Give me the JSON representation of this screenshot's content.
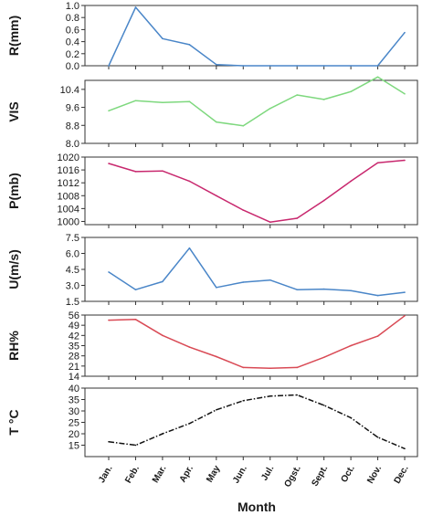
{
  "chart_data": {
    "type": "line",
    "xlabel": "Month",
    "categories": [
      "Jan.",
      "Feb.",
      "Mar.",
      "Apr.",
      "May",
      "Jun.",
      "Jul.",
      "Ogst.",
      "Sept.",
      "Oct.",
      "Nov.",
      "Dec."
    ],
    "panels": [
      {
        "ylabel": "R(mm)",
        "ylim": [
          0.0,
          1.0
        ],
        "yticks": [
          "0.0",
          "0.2",
          "0.4",
          "0.6",
          "0.8",
          "1.0"
        ],
        "ytick_values": [
          0.0,
          0.2,
          0.4,
          0.6,
          0.8,
          1.0
        ],
        "color": "#4a86c8",
        "dash": "",
        "values": [
          0.0,
          0.97,
          0.45,
          0.35,
          0.02,
          0.0,
          0.0,
          0.0,
          0.0,
          0.0,
          0.0,
          0.55
        ]
      },
      {
        "ylabel": "VIS",
        "ylim": [
          8.0,
          10.8
        ],
        "yticks": [
          "8.0",
          "8.8",
          "9.6",
          "10.4"
        ],
        "ytick_values": [
          8.0,
          8.8,
          9.6,
          10.4
        ],
        "color": "#7ed87e",
        "dash": "",
        "values": [
          9.45,
          9.9,
          9.82,
          9.86,
          8.95,
          8.78,
          9.55,
          10.15,
          9.95,
          10.3,
          10.95,
          10.2
        ]
      },
      {
        "ylabel": "P(mb)",
        "ylim": [
          999,
          1020
        ],
        "yticks": [
          "1000",
          "1004",
          "1008",
          "1012",
          "1016",
          "1020"
        ],
        "ytick_values": [
          1000,
          1004,
          1008,
          1012,
          1016,
          1020
        ],
        "color": "#c8286e",
        "dash": "",
        "values": [
          1018,
          1015.5,
          1015.7,
          1012.5,
          1008,
          1003.5,
          999.8,
          1001,
          1006.5,
          1012.5,
          1018.2,
          1019
        ]
      },
      {
        "ylabel": "U(m/s)",
        "ylim": [
          1.5,
          7.5
        ],
        "yticks": [
          "1.5",
          "3.0",
          "4.5",
          "6.0",
          "7.5"
        ],
        "ytick_values": [
          1.5,
          3.0,
          4.5,
          6.0,
          7.5
        ],
        "color": "#4a86c8",
        "dash": "",
        "values": [
          4.25,
          2.6,
          3.35,
          6.5,
          2.8,
          3.3,
          3.5,
          2.6,
          2.65,
          2.5,
          2.05,
          2.35
        ]
      },
      {
        "ylabel": "RH%",
        "ylim": [
          14,
          56
        ],
        "yticks": [
          "14",
          "21",
          "28",
          "35",
          "42",
          "49",
          "56"
        ],
        "ytick_values": [
          14,
          21,
          28,
          35,
          42,
          49,
          56
        ],
        "color": "#d94a55",
        "dash": "",
        "values": [
          52.5,
          53,
          42,
          34,
          27.5,
          20,
          19.5,
          20,
          27,
          35,
          41.5,
          55.5
        ]
      },
      {
        "ylabel": "T °C",
        "ylim": [
          10,
          40
        ],
        "yticks": [
          "15",
          "20",
          "25",
          "30",
          "35",
          "40"
        ],
        "ytick_values": [
          15,
          20,
          25,
          30,
          35,
          40
        ],
        "color": "#111111",
        "dash": "6,2,1.5,2",
        "values": [
          16.5,
          15,
          20,
          24.5,
          30.5,
          34.5,
          36.5,
          37,
          32.5,
          27,
          18.5,
          13.5
        ]
      }
    ]
  }
}
